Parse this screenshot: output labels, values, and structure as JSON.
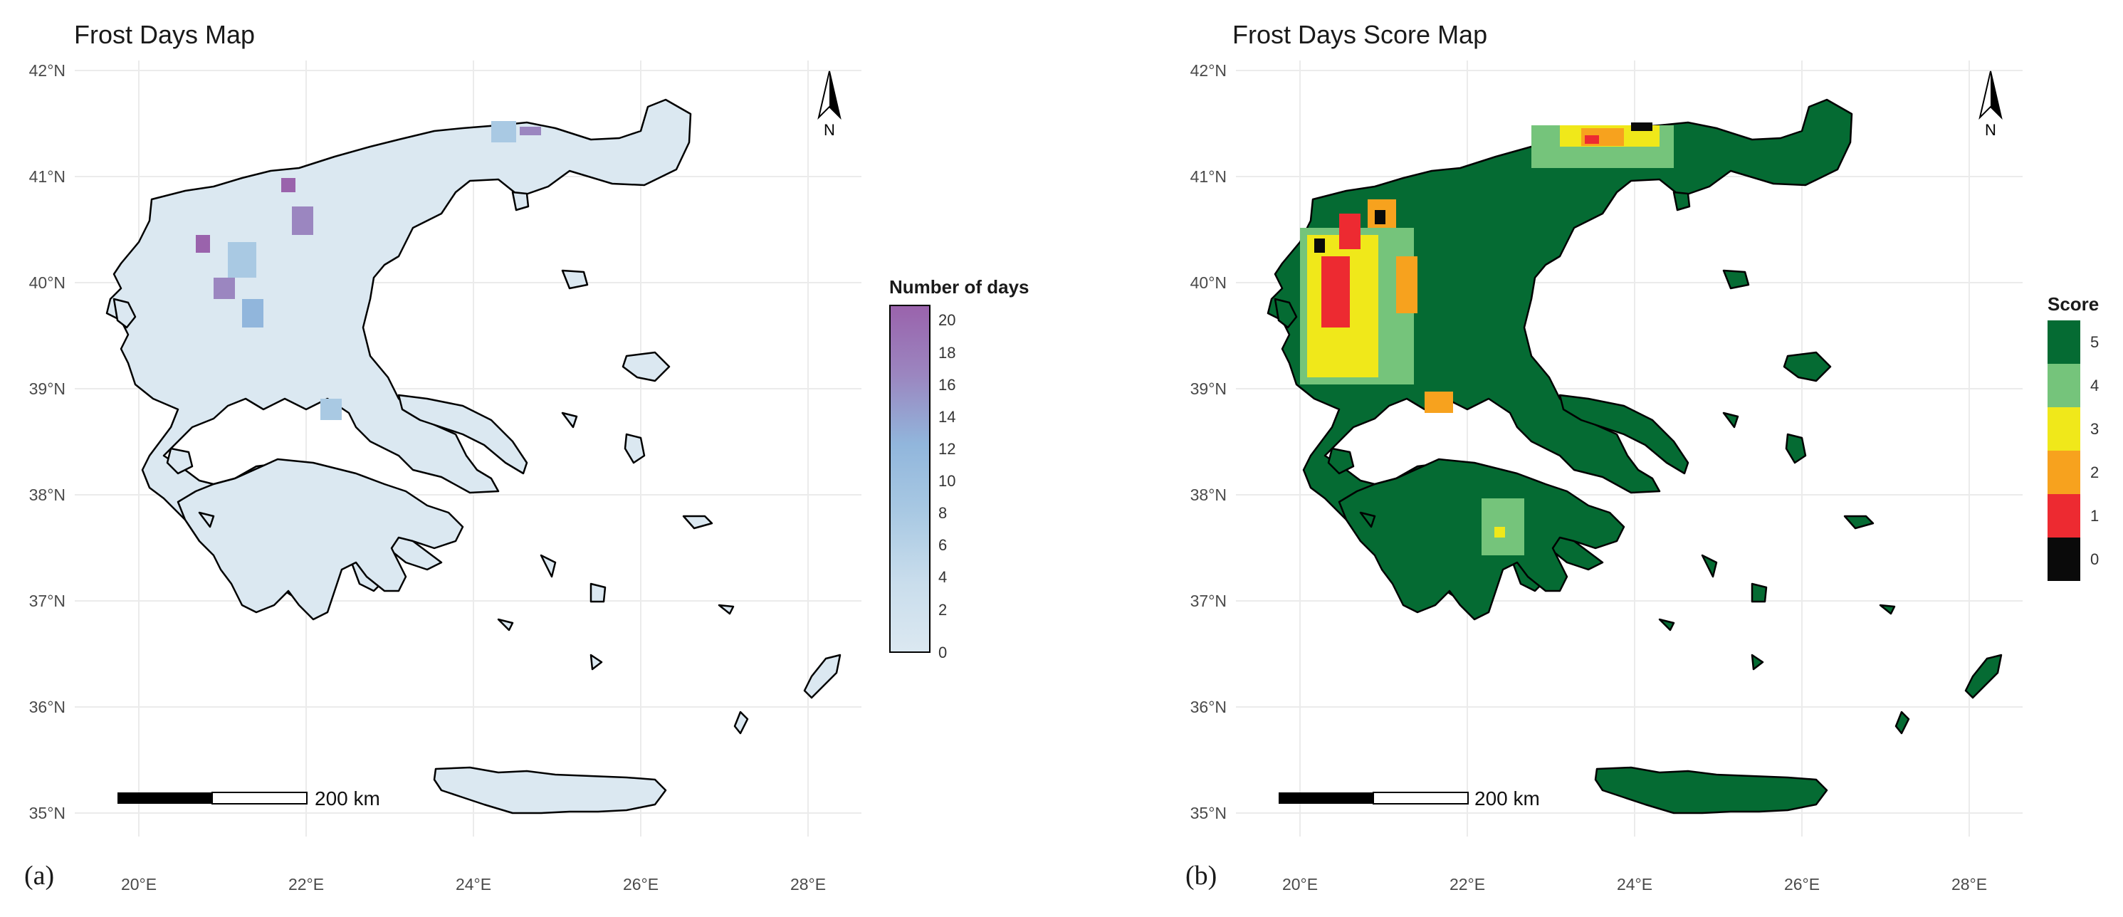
{
  "panels": [
    {
      "id": "a",
      "title": "Frost Days Map",
      "label": "(a)",
      "legend": {
        "title": "Number of days",
        "ticks": [
          "20",
          "18",
          "16",
          "14",
          "12",
          "10",
          "8",
          "6",
          "4",
          "2",
          "0"
        ],
        "gradient": [
          "#dbe8f1",
          "#c9ddec",
          "#a9c9e3",
          "#91b6dc",
          "#9b86c0",
          "#9a63ac"
        ]
      },
      "scalebar_label": "200 km",
      "north_label": "N"
    },
    {
      "id": "b",
      "title": "Frost Days Score Map",
      "label": "(b)",
      "legend": {
        "title": "Score",
        "classes": [
          {
            "label": "5",
            "color": "#056b33"
          },
          {
            "label": "4",
            "color": "#75c47b"
          },
          {
            "label": "3",
            "color": "#f0e81a"
          },
          {
            "label": "2",
            "color": "#f7a21e"
          },
          {
            "label": "1",
            "color": "#ed2a31"
          },
          {
            "label": "0",
            "color": "#0a0a0a"
          }
        ]
      },
      "scalebar_label": "200 km",
      "north_label": "N"
    }
  ],
  "axes": {
    "x_ticks": [
      "20°E",
      "22°E",
      "24°E",
      "26°E",
      "28°E"
    ],
    "y_ticks": [
      "42°N",
      "41°N",
      "40°N",
      "39°N",
      "38°N",
      "37°N",
      "36°N",
      "35°N"
    ]
  },
  "colors": {
    "frost_base": "#dbe8f1",
    "frost_mid": "#a9c9e3",
    "frost_high": "#9a63ac",
    "score_5": "#056b33",
    "score_4": "#75c47b",
    "score_3": "#f0e81a",
    "score_2": "#f7a21e",
    "score_1": "#ed2a31",
    "score_0": "#0a0a0a",
    "grid": "#ebebeb"
  }
}
